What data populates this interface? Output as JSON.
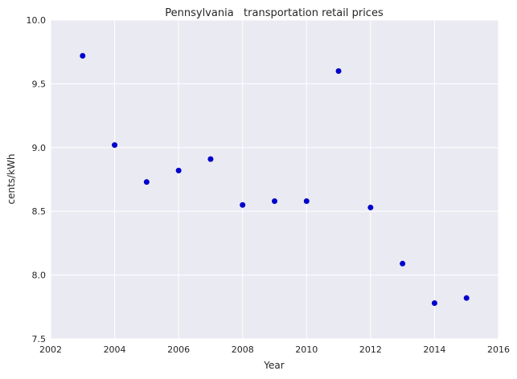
{
  "chart_data": {
    "type": "scatter",
    "title": "Pennsylvania   transportation retail prices",
    "xlabel": "Year",
    "ylabel": "cents/kWh",
    "xlim": [
      2002,
      2016
    ],
    "ylim": [
      7.5,
      10.0
    ],
    "xticks": [
      2002,
      2004,
      2006,
      2008,
      2010,
      2012,
      2014,
      2016
    ],
    "yticks": [
      7.5,
      8.0,
      8.5,
      9.0,
      9.5,
      10.0
    ],
    "ytick_labels": [
      "7.5",
      "8.0",
      "8.5",
      "9.0",
      "9.5",
      "10.0"
    ],
    "grid": true,
    "series": [
      {
        "x": [
          2003,
          2004,
          2005,
          2006,
          2007,
          2008,
          2009,
          2010,
          2011,
          2012,
          2013,
          2014,
          2015
        ],
        "y": [
          9.72,
          9.02,
          8.73,
          8.82,
          8.91,
          8.55,
          8.58,
          8.58,
          9.6,
          8.53,
          8.09,
          7.78,
          7.82
        ],
        "color": "#0000cc"
      }
    ],
    "colors": {
      "background": "#eaeaf2",
      "grid": "#ffffff",
      "marker": "#0000cc"
    }
  }
}
